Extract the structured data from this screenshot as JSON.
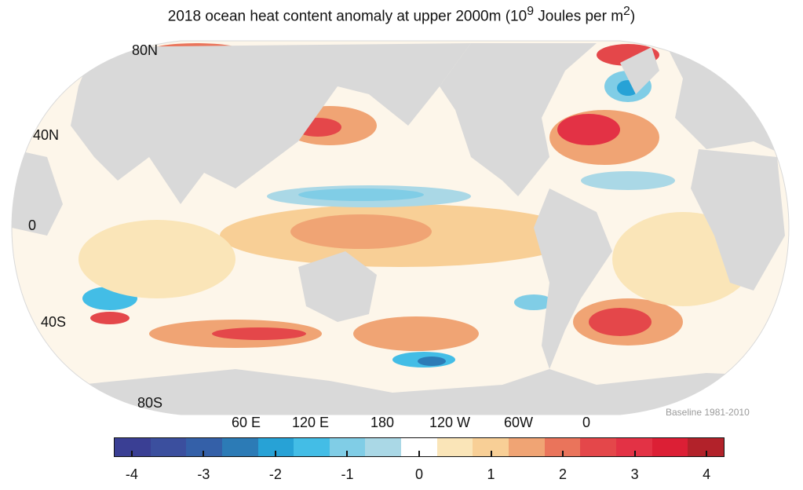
{
  "title": "2018 ocean heat content anomaly at upper 2000m (10",
  "title_sup": "9",
  "title_mid": " Joules per m",
  "title_sup2": "2",
  "title_end": ")",
  "latitude_labels": [
    "80N",
    "40N",
    "0",
    "40S",
    "80S"
  ],
  "longitude_labels": [
    "60 E",
    "120 E",
    "180",
    "120 W",
    "60W",
    "0"
  ],
  "baseline": "Baseline 1981-2010",
  "colorbar": {
    "ticks": [
      "-4",
      "-3",
      "-2",
      "-1",
      "0",
      "1",
      "2",
      "3",
      "4"
    ],
    "range": [
      -4.25,
      4.25
    ],
    "step": 0.5,
    "colors": [
      "#3a3f94",
      "#3b4f9e",
      "#3460a8",
      "#2c7bb6",
      "#27a2d6",
      "#43bde6",
      "#80cde6",
      "#aad8e6",
      "#ffffff",
      "#fae5b8",
      "#f8cf96",
      "#f0a474",
      "#ea745b",
      "#e4474a",
      "#e33245",
      "#dc1f35",
      "#b2222a"
    ]
  },
  "land_color": "#d9d9d9"
}
